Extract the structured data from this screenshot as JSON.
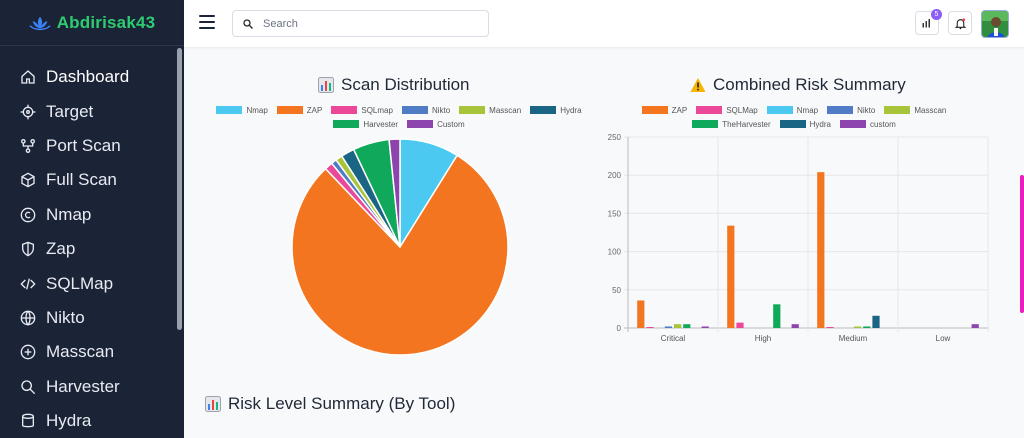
{
  "brand": {
    "name": "Abdirisak43"
  },
  "sidebar": {
    "items": [
      {
        "label": "Dashboard",
        "icon": "home-icon",
        "active": true
      },
      {
        "label": "Target",
        "icon": "crosshair-icon"
      },
      {
        "label": "Port Scan",
        "icon": "network-icon"
      },
      {
        "label": "Full Scan",
        "icon": "box-icon"
      },
      {
        "label": "Nmap",
        "icon": "copyright-icon"
      },
      {
        "label": "Zap",
        "icon": "shield-icon"
      },
      {
        "label": "SQLMap",
        "icon": "code-icon"
      },
      {
        "label": "Nikto",
        "icon": "globe-icon"
      },
      {
        "label": "Masscan",
        "icon": "plus-circle-icon"
      },
      {
        "label": "Harvester",
        "icon": "search-icon"
      },
      {
        "label": "Hydra",
        "icon": "database-icon"
      }
    ]
  },
  "header": {
    "search_placeholder": "Search",
    "notification_count": "5"
  },
  "colors": {
    "Nmap": "#4cc9f0",
    "ZAP": "#f47520",
    "SQLmap": "#ec4899",
    "Nikto": "#4f7cc4",
    "Masscan": "#a8c43a",
    "Hydra": "#1a6584",
    "Harvester": "#10a85a",
    "Custom": "#8e44ad"
  },
  "scan_distribution": {
    "title": "Scan Distribution",
    "legend": [
      "Nmap",
      "ZAP",
      "SQLmap",
      "Nikto",
      "Masscan",
      "Hydra",
      "Harvester",
      "Custom"
    ]
  },
  "risk_summary": {
    "title": "Combined Risk Summary",
    "legend": [
      "ZAP",
      "SQLMap",
      "Nmap",
      "Nikto",
      "Masscan",
      "TheHarvester",
      "Hydra",
      "custom"
    ]
  },
  "risk_by_tool": {
    "title": "Risk Level Summary (By Tool)"
  },
  "chart_data": [
    {
      "type": "pie",
      "title": "Scan Distribution",
      "labels": [
        "Nmap",
        "ZAP",
        "SQLmap",
        "Nikto",
        "Masscan",
        "Hydra",
        "Harvester",
        "Custom"
      ],
      "values": [
        8.8,
        78.4,
        1.2,
        0.8,
        1.0,
        2.0,
        5.4,
        1.6
      ]
    },
    {
      "type": "bar",
      "title": "Combined Risk Summary",
      "categories": [
        "Critical",
        "High",
        "Medium",
        "Low"
      ],
      "ylim": [
        0,
        250
      ],
      "yticks": [
        0,
        50,
        100,
        150,
        200,
        250
      ],
      "grid": true,
      "legend_position": "top",
      "series": [
        {
          "name": "ZAP",
          "values": [
            36,
            134,
            204,
            0
          ]
        },
        {
          "name": "SQLMap",
          "values": [
            1,
            7,
            1,
            0
          ]
        },
        {
          "name": "Nmap",
          "values": [
            0,
            0,
            0,
            0
          ]
        },
        {
          "name": "Nikto",
          "values": [
            2,
            0,
            0,
            0
          ]
        },
        {
          "name": "Masscan",
          "values": [
            5,
            0,
            2,
            0
          ]
        },
        {
          "name": "TheHarvester",
          "values": [
            5,
            31,
            2,
            0
          ]
        },
        {
          "name": "Hydra",
          "values": [
            0,
            0,
            16,
            0
          ]
        },
        {
          "name": "custom",
          "values": [
            2,
            5,
            0,
            5
          ]
        }
      ]
    }
  ]
}
